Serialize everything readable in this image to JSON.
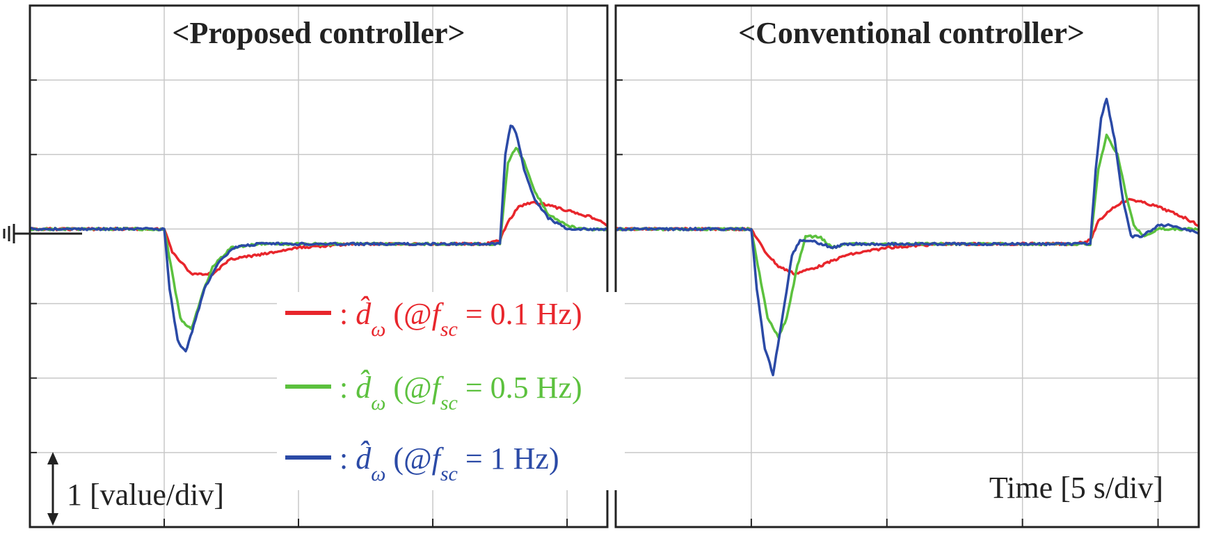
{
  "colors": {
    "red": "#e8262c",
    "green": "#5cc13e",
    "blue": "#2b4aa6",
    "grid": "#c8c8c8",
    "frame": "#222222"
  },
  "legend": {
    "entries": [
      {
        "series": "red",
        "prefix": ": ",
        "symbol": "d̂",
        "subscript": "ω",
        "open": " (@",
        "f": "f",
        "fsub": "sc",
        "rest": " = 0.1 Hz)"
      },
      {
        "series": "green",
        "prefix": ": ",
        "symbol": "d̂",
        "subscript": "ω",
        "open": " (@",
        "f": "f",
        "fsub": "sc",
        "rest": " = 0.5 Hz)"
      },
      {
        "series": "blue",
        "prefix": ": ",
        "symbol": "d̂",
        "subscript": "ω",
        "open": " (@",
        "f": "f",
        "fsub": "sc",
        "rest": " = 1 Hz)"
      }
    ]
  },
  "annotations": {
    "vertical_scale": "1 [value/div]",
    "time_scale": "Time [5 s/div]"
  },
  "chart_data": [
    {
      "type": "line",
      "title": "<Proposed controller>",
      "xlim": [
        0,
        21.5
      ],
      "ylim": [
        -4,
        3
      ],
      "grid": true,
      "series": [
        {
          "key": "red",
          "x": [
            0,
            2,
            4,
            4.8,
            5,
            5.3,
            6,
            6.8,
            7.5,
            8.5,
            10,
            12,
            14,
            17,
            17.5,
            17.8,
            18.2,
            18.6,
            19,
            19.5,
            20,
            21,
            21.5
          ],
          "y": [
            0,
            0,
            0,
            0,
            0,
            -0.3,
            -0.6,
            -0.6,
            -0.4,
            -0.35,
            -0.25,
            -0.2,
            -0.2,
            -0.2,
            -0.15,
            0.1,
            0.3,
            0.35,
            0.35,
            0.3,
            0.25,
            0.15,
            0.05
          ]
        },
        {
          "key": "green",
          "x": [
            0,
            2,
            4,
            4.8,
            5,
            5.3,
            5.6,
            6,
            6.4,
            6.8,
            7.5,
            8.5,
            10,
            12,
            14,
            17,
            17.5,
            17.8,
            18.1,
            18.4,
            18.8,
            19.3,
            20,
            20.5,
            21,
            21.5
          ],
          "y": [
            0,
            0,
            0,
            0,
            0,
            -0.6,
            -1.2,
            -1.35,
            -0.9,
            -0.5,
            -0.25,
            -0.2,
            -0.2,
            -0.2,
            -0.2,
            -0.2,
            -0.2,
            0.9,
            1.1,
            0.9,
            0.5,
            0.2,
            0.05,
            0,
            0,
            0
          ]
        },
        {
          "key": "blue",
          "x": [
            0,
            2,
            4,
            4.8,
            5,
            5.2,
            5.5,
            5.8,
            6.1,
            6.5,
            7,
            7.6,
            8.5,
            10,
            12,
            14,
            17,
            17.5,
            17.7,
            17.9,
            18.1,
            18.4,
            18.8,
            19.3,
            20,
            20.5,
            21,
            21.5
          ],
          "y": [
            0,
            0,
            0,
            0,
            0,
            -0.8,
            -1.5,
            -1.65,
            -1.3,
            -0.8,
            -0.45,
            -0.25,
            -0.2,
            -0.2,
            -0.2,
            -0.2,
            -0.2,
            -0.2,
            1,
            1.4,
            1.3,
            0.8,
            0.4,
            0.15,
            0,
            0,
            0,
            0
          ]
        }
      ]
    },
    {
      "type": "line",
      "title": "<Conventional controller>",
      "xlim": [
        0,
        21.5
      ],
      "ylim": [
        -4,
        3
      ],
      "grid": true,
      "series": [
        {
          "key": "red",
          "x": [
            0,
            2,
            4,
            4.8,
            5,
            5.5,
            6,
            6.6,
            7.5,
            8.5,
            10,
            12,
            14,
            17,
            17.5,
            17.8,
            18.2,
            18.6,
            19,
            19.5,
            20,
            21,
            21.5
          ],
          "y": [
            0,
            0,
            0,
            0,
            0,
            -0.3,
            -0.5,
            -0.6,
            -0.5,
            -0.35,
            -0.25,
            -0.2,
            -0.2,
            -0.2,
            -0.15,
            0.1,
            0.25,
            0.35,
            0.4,
            0.35,
            0.3,
            0.15,
            0.05
          ]
        },
        {
          "key": "green",
          "x": [
            0,
            2,
            4,
            4.8,
            5,
            5.3,
            5.6,
            6,
            6.3,
            6.7,
            7,
            7.5,
            8,
            8.5,
            10,
            12,
            14,
            17,
            17.5,
            17.8,
            18.1,
            18.5,
            18.8,
            19.1,
            19.5,
            20,
            20.5,
            21,
            21.5
          ],
          "y": [
            0,
            0,
            0,
            0,
            0,
            -0.6,
            -1.2,
            -1.45,
            -1.2,
            -0.5,
            -0.1,
            -0.1,
            -0.25,
            -0.2,
            -0.2,
            -0.2,
            -0.2,
            -0.2,
            -0.2,
            0.8,
            1.25,
            1,
            0.5,
            0.05,
            -0.1,
            0,
            0,
            0,
            0
          ]
        },
        {
          "key": "blue",
          "x": [
            0,
            2,
            4,
            4.8,
            5,
            5.2,
            5.5,
            5.8,
            6.1,
            6.5,
            6.8,
            7.2,
            8,
            8.5,
            10,
            12,
            14,
            17,
            17.5,
            17.7,
            17.9,
            18.1,
            18.4,
            18.7,
            19,
            19.4,
            20,
            20.5,
            21,
            21.5
          ],
          "y": [
            0,
            0,
            0,
            0,
            0,
            -0.8,
            -1.6,
            -1.95,
            -1.3,
            -0.35,
            -0.15,
            -0.15,
            -0.25,
            -0.2,
            -0.2,
            -0.2,
            -0.2,
            -0.2,
            -0.2,
            0.8,
            1.5,
            1.75,
            1.2,
            0.4,
            -0.1,
            -0.1,
            0.05,
            0.05,
            0,
            -0.05
          ]
        }
      ]
    }
  ]
}
